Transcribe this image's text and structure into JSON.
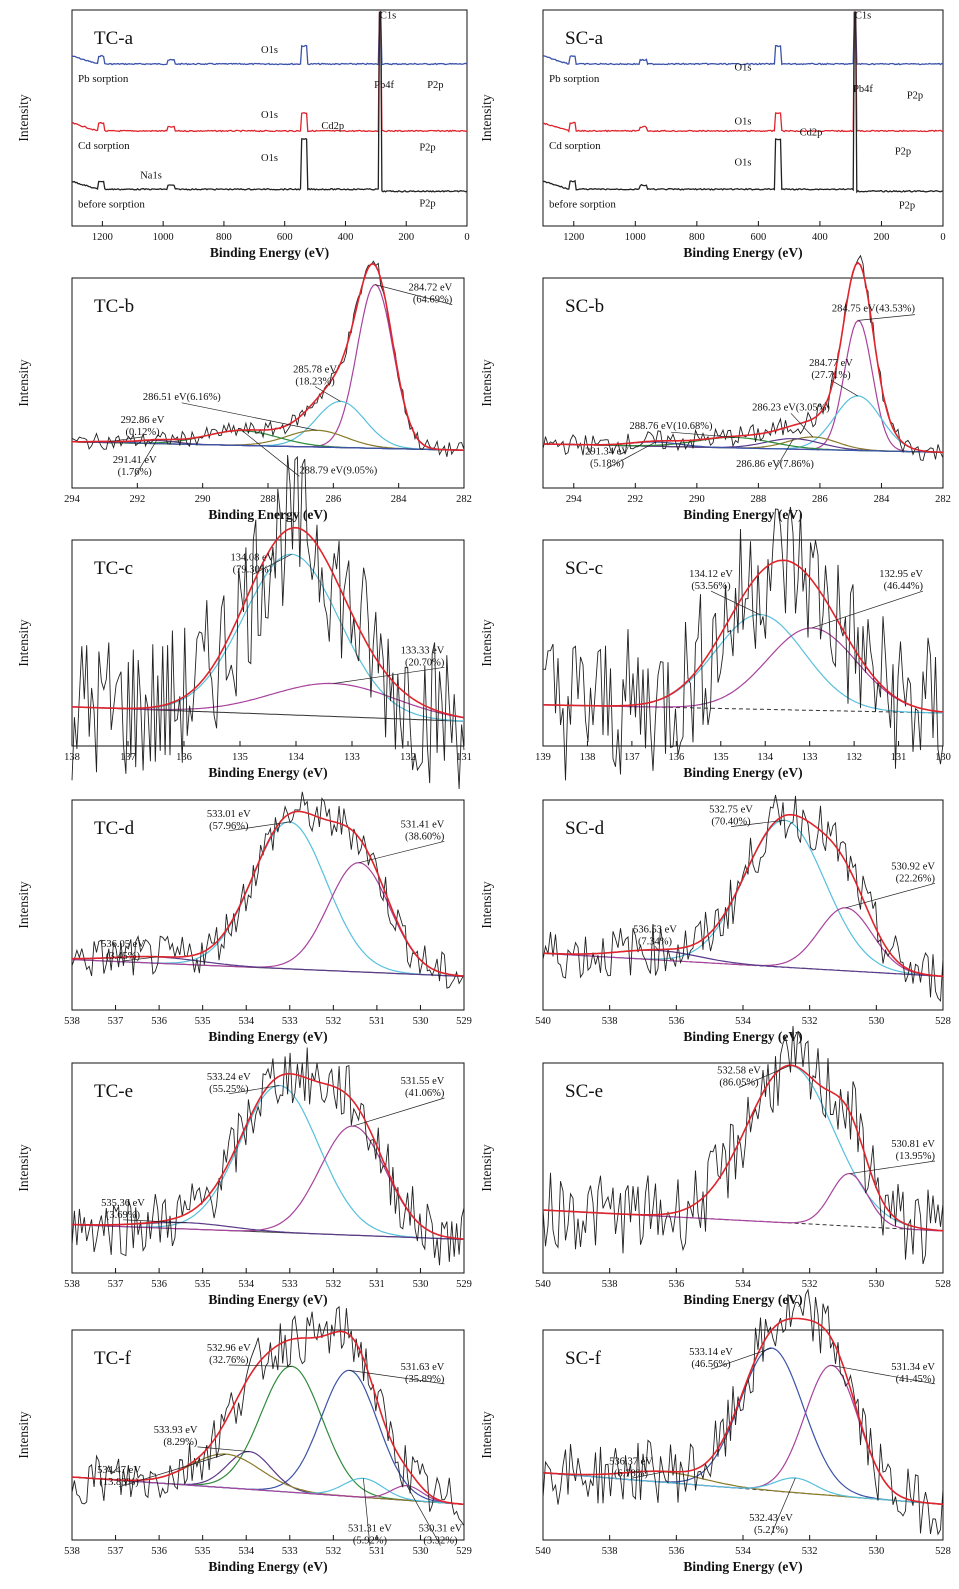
{
  "colors": {
    "envelope": "#e0242c",
    "raw": "#222222",
    "cyan": "#56c0dc",
    "magenta": "#a8429c",
    "green": "#2e8b3a",
    "olive": "#8a7a2a",
    "purple": "#5a3a8a",
    "baseline": "#333333",
    "blue": "#3b53a8"
  },
  "common": {
    "ylabel": "Intensity",
    "xlabel": "Binding Energy (eV)"
  },
  "chart_data": [
    {
      "id": "TC-a",
      "type": "line",
      "title": "TC-a",
      "xlabel": "Binding Energy (eV)",
      "ylabel": "Intensity",
      "xlim": [
        1300,
        0
      ],
      "ticks": [
        "1200",
        "1000",
        "800",
        "600",
        "400",
        "200",
        "0"
      ],
      "tick_values": [
        1200,
        1000,
        800,
        600,
        400,
        200,
        0
      ],
      "series": [
        {
          "name": "Pb sorption",
          "color": "blue"
        },
        {
          "name": "Cd sorption",
          "color": "envelope"
        },
        {
          "name": "before sorption",
          "color": "raw"
        }
      ],
      "annotations": [
        {
          "text": "C1s",
          "x": 285
        },
        {
          "text": "O1s",
          "x": 532
        },
        {
          "text": "Pb4f",
          "x": 138
        },
        {
          "text": "P2p",
          "x": 133
        },
        {
          "text": "O1s",
          "x": 532
        },
        {
          "text": "Cd2p",
          "x": 405
        },
        {
          "text": "P2p",
          "x": 133
        },
        {
          "text": "O1s",
          "x": 532
        },
        {
          "text": "Na1s",
          "x": 1072
        },
        {
          "text": "P2p",
          "x": 133
        }
      ]
    },
    {
      "id": "SC-a",
      "type": "line",
      "title": "SC-a",
      "xlabel": "Binding Energy (eV)",
      "ylabel": "Intensity",
      "xlim": [
        1300,
        0
      ],
      "ticks": [
        "1200",
        "1000",
        "800",
        "600",
        "400",
        "200",
        "0"
      ],
      "tick_values": [
        1200,
        1000,
        800,
        600,
        400,
        200,
        0
      ],
      "series": [
        {
          "name": "Pb sorption",
          "color": "blue"
        },
        {
          "name": "Cd sorption",
          "color": "envelope"
        },
        {
          "name": "before sorption",
          "color": "raw"
        }
      ],
      "annotations": [
        {
          "text": "C1s",
          "x": 285
        },
        {
          "text": "O1s",
          "x": 532
        },
        {
          "text": "Pb4f",
          "x": 138
        },
        {
          "text": "P2p",
          "x": 133
        },
        {
          "text": "O1s",
          "x": 532
        },
        {
          "text": "Cd2p",
          "x": 405
        },
        {
          "text": "P2p",
          "x": 133
        },
        {
          "text": "O1s",
          "x": 532
        },
        {
          "text": "P2p",
          "x": 133
        }
      ]
    },
    {
      "id": "TC-b",
      "type": "line",
      "title": "TC-b",
      "xlabel": "Binding Energy (eV)",
      "ylabel": "Intensity",
      "xlim": [
        294,
        282
      ],
      "ticks": [
        "294",
        "292",
        "290",
        "288",
        "286",
        "284",
        "282"
      ],
      "tick_values": [
        294,
        292,
        290,
        288,
        286,
        284,
        282
      ],
      "peaks": [
        {
          "center": 284.72,
          "pct": 64.69,
          "color": "magenta",
          "label": "284.72 eV\n(64.69%)"
        },
        {
          "center": 285.78,
          "pct": 18.23,
          "color": "cyan",
          "label": "285.78 eV\n(18.23%)"
        },
        {
          "center": 286.51,
          "pct": 6.16,
          "color": "olive",
          "label": "286.51 eV(6.16%)"
        },
        {
          "center": 288.79,
          "pct": 9.05,
          "color": "green",
          "label": "288.79 eV(9.05%)"
        },
        {
          "center": 291.41,
          "pct": 1.76,
          "color": "purple",
          "label": "291.41 eV\n(1.76%)"
        },
        {
          "center": 292.86,
          "pct": 0.12,
          "color": "blue",
          "label": "292.86 eV\n(0.12%)"
        }
      ]
    },
    {
      "id": "SC-b",
      "type": "line",
      "title": "SC-b",
      "xlabel": "Binding Energy (eV)",
      "ylabel": "Intensity",
      "xlim": [
        295,
        282
      ],
      "ticks": [
        "294",
        "292",
        "290",
        "288",
        "286",
        "284",
        "282"
      ],
      "tick_values": [
        294,
        292,
        290,
        288,
        286,
        284,
        282
      ],
      "peaks": [
        {
          "center": 284.75,
          "pct": 43.53,
          "color": "magenta",
          "label": "284.75 eV(43.53%)"
        },
        {
          "center": 284.77,
          "pct": 27.71,
          "color": "cyan",
          "label": "284.77 eV\n(27.71%)"
        },
        {
          "center": 286.23,
          "pct": 3.05,
          "color": "olive",
          "label": "286.23 eV(3.05%)"
        },
        {
          "center": 286.86,
          "pct": 7.86,
          "color": "purple",
          "label": "286.86 eV(7.86%)"
        },
        {
          "center": 288.76,
          "pct": 10.68,
          "color": "green",
          "label": "288.76 eV(10.68%)"
        },
        {
          "center": 291.34,
          "pct": 5.18,
          "color": "blue",
          "label": "291.34 eV\n(5.18%)"
        }
      ]
    },
    {
      "id": "TC-c",
      "type": "line",
      "title": "TC-c",
      "xlabel": "Binding Energy (eV)",
      "ylabel": "Intensity",
      "xlim": [
        138,
        131
      ],
      "ticks": [
        "138",
        "137",
        "136",
        "135",
        "134",
        "133",
        "132",
        "131"
      ],
      "tick_values": [
        138,
        137,
        136,
        135,
        134,
        133,
        132,
        131
      ],
      "peaks": [
        {
          "center": 134.08,
          "pct": 79.3,
          "color": "cyan",
          "label": "134.08 eV\n(79.30%)"
        },
        {
          "center": 133.33,
          "pct": 20.7,
          "color": "magenta",
          "label": "133.33 eV\n(20.70%)"
        }
      ]
    },
    {
      "id": "SC-c",
      "type": "line",
      "title": "SC-c",
      "xlabel": "Binding Energy (eV)",
      "ylabel": "Intensity",
      "xlim": [
        139,
        130
      ],
      "ticks": [
        "139",
        "138",
        "137",
        "136",
        "135",
        "134",
        "133",
        "132",
        "131",
        "130"
      ],
      "tick_values": [
        139,
        138,
        137,
        136,
        135,
        134,
        133,
        132,
        131,
        130
      ],
      "peaks": [
        {
          "center": 134.12,
          "pct": 53.56,
          "color": "cyan",
          "label": "134.12 eV\n(53.56%)"
        },
        {
          "center": 132.95,
          "pct": 46.44,
          "color": "magenta",
          "label": "132.95 eV\n(46.44%)"
        }
      ]
    },
    {
      "id": "TC-d",
      "type": "line",
      "title": "TC-d",
      "xlabel": "Binding Energy (eV)",
      "ylabel": "Intensity",
      "xlim": [
        538,
        529
      ],
      "ticks": [
        "538",
        "537",
        "536",
        "535",
        "534",
        "533",
        "532",
        "531",
        "530",
        "529"
      ],
      "tick_values": [
        538,
        537,
        536,
        535,
        534,
        533,
        532,
        531,
        530,
        529
      ],
      "peaks": [
        {
          "center": 533.01,
          "pct": 57.96,
          "color": "cyan",
          "label": "533.01 eV\n(57.96%)"
        },
        {
          "center": 531.41,
          "pct": 38.6,
          "color": "magenta",
          "label": "531.41 eV\n(38.60%)"
        },
        {
          "center": 536.05,
          "pct": 3.45,
          "color": "purple",
          "label": "536.05 eV\n(3.45%)"
        }
      ]
    },
    {
      "id": "SC-d",
      "type": "line",
      "title": "SC-d",
      "xlabel": "Binding Energy (eV)",
      "ylabel": "Intensity",
      "xlim": [
        540,
        528
      ],
      "ticks": [
        "540",
        "538",
        "536",
        "534",
        "532",
        "530",
        "528"
      ],
      "tick_values": [
        540,
        538,
        536,
        534,
        532,
        530,
        528
      ],
      "peaks": [
        {
          "center": 532.75,
          "pct": 70.4,
          "color": "cyan",
          "label": "532.75 eV\n(70.40%)"
        },
        {
          "center": 530.92,
          "pct": 22.26,
          "color": "magenta",
          "label": "530.92 eV\n(22.26%)"
        },
        {
          "center": 536.53,
          "pct": 7.34,
          "color": "purple",
          "label": "536.53 eV\n(7.34%)"
        }
      ]
    },
    {
      "id": "TC-e",
      "type": "line",
      "title": "TC-e",
      "xlabel": "Binding Energy (eV)",
      "ylabel": "Intensity",
      "xlim": [
        538,
        529
      ],
      "ticks": [
        "538",
        "537",
        "536",
        "535",
        "534",
        "533",
        "532",
        "531",
        "530",
        "529"
      ],
      "tick_values": [
        538,
        537,
        536,
        535,
        534,
        533,
        532,
        531,
        530,
        529
      ],
      "peaks": [
        {
          "center": 533.24,
          "pct": 55.25,
          "color": "cyan",
          "label": "533.24 eV\n(55.25%)"
        },
        {
          "center": 531.55,
          "pct": 41.06,
          "color": "magenta",
          "label": "531.55 eV\n(41.06%)"
        },
        {
          "center": 535.36,
          "pct": 3.69,
          "color": "purple",
          "label": "535.36 eV\n(3.69%)"
        }
      ]
    },
    {
      "id": "SC-e",
      "type": "line",
      "title": "SC-e",
      "xlabel": "Binding Energy (eV)",
      "ylabel": "Intensity",
      "xlim": [
        540,
        528
      ],
      "ticks": [
        "540",
        "538",
        "536",
        "534",
        "532",
        "530",
        "528"
      ],
      "tick_values": [
        540,
        538,
        536,
        534,
        532,
        530,
        528
      ],
      "peaks": [
        {
          "center": 532.58,
          "pct": 86.05,
          "color": "cyan",
          "label": "532.58 eV\n(86.05%)"
        },
        {
          "center": 530.81,
          "pct": 13.95,
          "color": "magenta",
          "label": "530.81 eV\n(13.95%)"
        }
      ]
    },
    {
      "id": "TC-f",
      "type": "line",
      "title": "TC-f",
      "xlabel": "Binding Energy (eV)",
      "ylabel": "Intensity",
      "xlim": [
        538,
        529
      ],
      "ticks": [
        "538",
        "537",
        "536",
        "535",
        "534",
        "533",
        "532",
        "531",
        "530",
        "529"
      ],
      "tick_values": [
        538,
        537,
        536,
        535,
        534,
        533,
        532,
        531,
        530,
        529
      ],
      "peaks": [
        {
          "center": 532.96,
          "pct": 32.76,
          "color": "green",
          "label": "532.96 eV\n(32.76%)"
        },
        {
          "center": 531.63,
          "pct": 35.89,
          "color": "blue",
          "label": "531.63 eV\n(35.89%)"
        },
        {
          "center": 533.93,
          "pct": 8.29,
          "color": "purple",
          "label": "533.93 eV\n(8.29%)"
        },
        {
          "center": 534.47,
          "pct": 13.83,
          "color": "olive",
          "label": "534.47 eV\n(13.83%)"
        },
        {
          "center": 531.31,
          "pct": 5.92,
          "color": "cyan",
          "label": "531.31 eV\n(5.92%)"
        },
        {
          "center": 530.31,
          "pct": 3.32,
          "color": "magenta",
          "label": "530.31 eV\n(3.32%)"
        }
      ]
    },
    {
      "id": "SC-f",
      "type": "line",
      "title": "SC-f",
      "xlabel": "Binding Energy (eV)",
      "ylabel": "Intensity",
      "xlim": [
        540,
        528
      ],
      "ticks": [
        "540",
        "538",
        "536",
        "534",
        "532",
        "530",
        "528"
      ],
      "tick_values": [
        540,
        538,
        536,
        534,
        532,
        530,
        528
      ],
      "peaks": [
        {
          "center": 533.14,
          "pct": 46.56,
          "color": "blue",
          "label": "533.14 eV\n(46.56%)"
        },
        {
          "center": 531.34,
          "pct": 41.45,
          "color": "magenta",
          "label": "531.34 eV\n(41.45%)"
        },
        {
          "center": 536.37,
          "pct": 6.78,
          "color": "olive",
          "label": "536.37 eV\n(6.78%)"
        },
        {
          "center": 532.43,
          "pct": 5.21,
          "color": "cyan",
          "label": "532.43 eV\n(5.21%)"
        }
      ]
    }
  ]
}
